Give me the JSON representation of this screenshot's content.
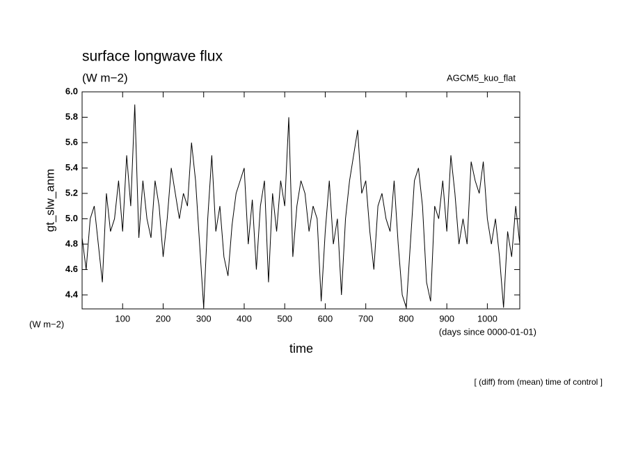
{
  "chart_data": {
    "type": "line",
    "title": "surface longwave flux",
    "units": "(W m−2)",
    "annotation": "AGCM5_kuo_flat",
    "y_label": "gt_slw_anm",
    "y_units": "(W m−2)",
    "x_label": "time",
    "x_units": "(days since 0000-01-01)",
    "note": "[ (diff) from (mean) time of control ]",
    "color": "#000000",
    "xlim": [
      0,
      1080
    ],
    "xticks": [
      100,
      200,
      300,
      400,
      500,
      600,
      700,
      800,
      900,
      1000
    ],
    "ylim": [
      4.29,
      6.0
    ],
    "yticks": [
      {
        "value": 6,
        "label": "6.0"
      },
      5.8,
      5.6,
      5.4,
      5.2,
      {
        "value": 5,
        "label": "5.0"
      },
      4.8,
      4.6,
      4.4
    ],
    "x": [
      0,
      10,
      20,
      30,
      40,
      50,
      60,
      70,
      80,
      90,
      100,
      110,
      120,
      130,
      140,
      150,
      160,
      170,
      180,
      190,
      200,
      210,
      220,
      230,
      240,
      250,
      260,
      270,
      280,
      290,
      300,
      310,
      320,
      330,
      340,
      350,
      360,
      370,
      380,
      390,
      400,
      410,
      420,
      430,
      440,
      450,
      460,
      470,
      480,
      490,
      500,
      510,
      520,
      530,
      540,
      550,
      560,
      570,
      580,
      590,
      600,
      610,
      620,
      630,
      640,
      650,
      660,
      670,
      680,
      690,
      700,
      710,
      720,
      730,
      740,
      750,
      760,
      770,
      780,
      790,
      800,
      810,
      820,
      830,
      840,
      850,
      860,
      870,
      880,
      890,
      900,
      910,
      920,
      930,
      940,
      950,
      960,
      970,
      980,
      990,
      1000,
      1010,
      1020,
      1030,
      1040,
      1050,
      1060,
      1070,
      1080
    ],
    "values": [
      4.85,
      4.6,
      5.0,
      5.1,
      4.8,
      4.5,
      5.2,
      4.9,
      5.0,
      5.3,
      4.9,
      5.5,
      5.1,
      5.9,
      4.85,
      5.3,
      5.0,
      4.85,
      5.3,
      5.1,
      4.7,
      5.0,
      5.4,
      5.2,
      5.0,
      5.2,
      5.1,
      5.6,
      5.3,
      4.8,
      4.3,
      5.0,
      5.5,
      4.9,
      5.1,
      4.7,
      4.55,
      4.95,
      5.2,
      5.3,
      5.4,
      4.8,
      5.15,
      4.6,
      5.1,
      5.3,
      4.5,
      5.2,
      4.9,
      5.3,
      5.1,
      5.8,
      4.7,
      5.1,
      5.3,
      5.2,
      4.9,
      5.1,
      5.0,
      4.35,
      4.9,
      5.3,
      4.8,
      5.0,
      4.4,
      5.0,
      5.3,
      5.5,
      5.7,
      5.2,
      5.3,
      4.9,
      4.6,
      5.1,
      5.2,
      5.0,
      4.9,
      5.3,
      4.8,
      4.4,
      4.3,
      4.8,
      5.3,
      5.4,
      5.1,
      4.5,
      4.35,
      5.1,
      5.0,
      5.3,
      4.9,
      5.5,
      5.2,
      4.8,
      5.0,
      4.8,
      5.45,
      5.3,
      5.2,
      5.45,
      5.0,
      4.8,
      5.0,
      4.7,
      4.3,
      4.9,
      4.7,
      5.1,
      4.8
    ]
  }
}
